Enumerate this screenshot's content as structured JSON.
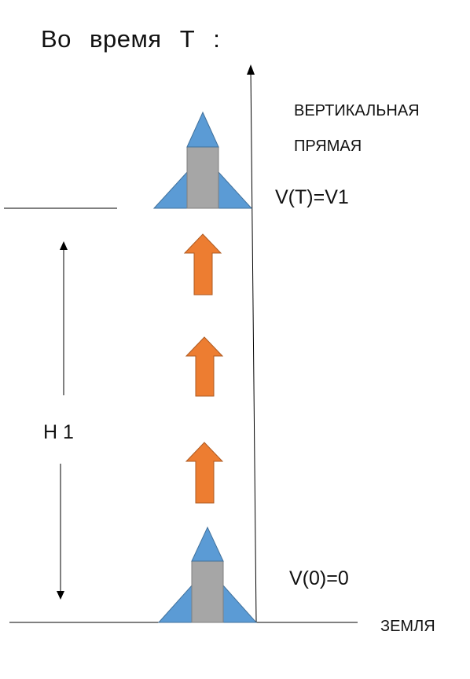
{
  "title": "Во время Т :",
  "vertical_line_label": [
    "ВЕРТИКАЛЬНАЯ",
    "ПРЯМАЯ"
  ],
  "velocity_top": "V(T)=V1",
  "velocity_bottom": "V(0)=0",
  "height_label": "H 1",
  "ground_label": "ЗЕМЛЯ",
  "colors": {
    "rocket_fin": "#5b9bd5",
    "rocket_fin_edge": "#41719c",
    "rocket_body": "#a6a6a6",
    "rocket_body_edge": "#7f7f7f",
    "thrust_arrow": "#ed7d31",
    "thrust_arrow_edge": "#ae5a21",
    "line": "#000000"
  },
  "icons": {
    "rocket": "rocket-icon",
    "thrust": "up-arrow-icon"
  }
}
